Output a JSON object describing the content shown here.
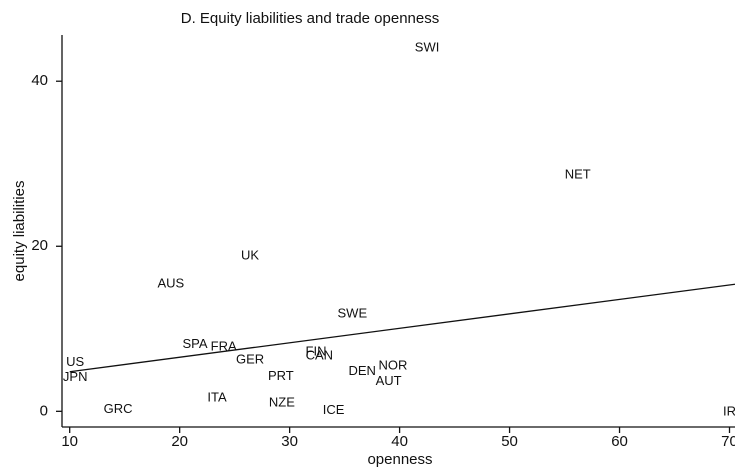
{
  "chart_data": {
    "type": "scatter",
    "title": "D. Equity liabilities and trade openness",
    "x_label": "openness",
    "y_label": "equity liabilities",
    "labels": [
      "SWI",
      "NET",
      "UK",
      "AUS",
      "SWE",
      "SPA",
      "FRA",
      "GER",
      "FIN",
      "CAN",
      "NOR",
      "DEN",
      "AUT",
      "PRT",
      "US",
      "JPN",
      "ITA",
      "NZE",
      "GRC",
      "ICE",
      "IR"
    ],
    "x": [
      42.5,
      56.2,
      26.4,
      19.2,
      35.7,
      21.4,
      24.0,
      26.4,
      32.4,
      32.7,
      39.4,
      36.6,
      39.0,
      29.2,
      10.5,
      10.5,
      23.4,
      29.3,
      14.4,
      34.0,
      70.0
    ],
    "values": [
      44.0,
      28.6,
      18.8,
      15.4,
      11.8,
      8.1,
      7.8,
      6.2,
      7.2,
      6.7,
      5.5,
      4.8,
      3.6,
      4.2,
      5.9,
      4.1,
      1.6,
      1.0,
      0.2,
      0.1,
      -0.1
    ],
    "fit_line": {
      "x": [
        10,
        70.5
      ],
      "values": [
        4.8,
        15.4
      ]
    },
    "xlim": [
      9.3,
      70.5
    ],
    "ylim": [
      -1.9,
      45.6
    ],
    "xticks": [
      10,
      20,
      30,
      40,
      50,
      60,
      70
    ],
    "yticks": [
      0,
      20,
      40
    ],
    "color": "#111111"
  }
}
